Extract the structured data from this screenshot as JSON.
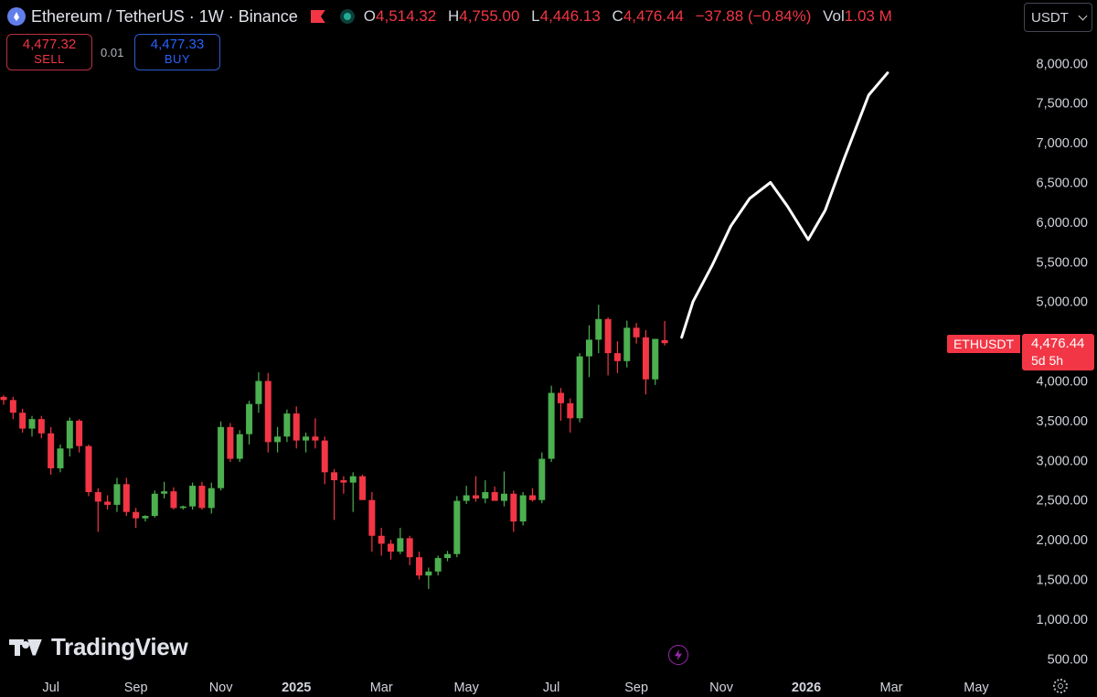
{
  "header": {
    "symbol_title": "Ethereum / TetherUS · 1W · Binance",
    "open_key": "O",
    "open": "4,514.32",
    "high_key": "H",
    "high": "4,755.00",
    "low_key": "L",
    "low": "4,446.13",
    "close_key": "C",
    "close": "4,476.44",
    "change": "−37.88 (−0.84%)",
    "vol_key": "Vol",
    "volume": "1.03 M"
  },
  "trade": {
    "sell_price": "4,477.32",
    "sell_label": "SELL",
    "spread": "0.01",
    "buy_price": "4,477.33",
    "buy_label": "BUY"
  },
  "currency_select": "USDT",
  "last_price": {
    "symbol": "ETHUSDT",
    "price": "4,476.44",
    "countdown": "5d 5h"
  },
  "branding": {
    "logo_text": "TradingView"
  },
  "colors": {
    "up": "#4caf50",
    "down": "#f23645",
    "projection": "#ffffff",
    "background": "#000000"
  },
  "chart_data": {
    "type": "candlestick",
    "interval": "1W",
    "y_ticks": [
      "8,000.00",
      "7,500.00",
      "7,000.00",
      "6,500.00",
      "6,000.00",
      "5,500.00",
      "5,000.00",
      "4,000.00",
      "3,500.00",
      "3,000.00",
      "2,500.00",
      "2,000.00",
      "1,500.00",
      "1,000.00",
      "500.00"
    ],
    "y_tick_values": [
      8000,
      7500,
      7000,
      6500,
      6000,
      5500,
      5000,
      4000,
      3500,
      3000,
      2500,
      2000,
      1500,
      1000,
      500
    ],
    "x_ticks": [
      {
        "label": "Jul",
        "bold": false,
        "index": 5
      },
      {
        "label": "Sep",
        "bold": false,
        "index": 14
      },
      {
        "label": "Nov",
        "bold": false,
        "index": 23
      },
      {
        "label": "2025",
        "bold": true,
        "index": 31
      },
      {
        "label": "Mar",
        "bold": false,
        "index": 40
      },
      {
        "label": "May",
        "bold": false,
        "index": 49
      },
      {
        "label": "Jul",
        "bold": false,
        "index": 58
      },
      {
        "label": "Sep",
        "bold": false,
        "index": 67
      },
      {
        "label": "Nov",
        "bold": false,
        "index": 76
      },
      {
        "label": "2026",
        "bold": true,
        "index": 85
      },
      {
        "label": "Mar",
        "bold": false,
        "index": 94
      },
      {
        "label": "May",
        "bold": false,
        "index": 103
      }
    ],
    "ylim": [
      300,
      8500
    ],
    "candles": [
      [
        3800,
        3820,
        3700,
        3760
      ],
      [
        3760,
        3800,
        3520,
        3600
      ],
      [
        3600,
        3650,
        3350,
        3400
      ],
      [
        3400,
        3560,
        3300,
        3520
      ],
      [
        3520,
        3560,
        3280,
        3340
      ],
      [
        3340,
        3420,
        2820,
        2900
      ],
      [
        2900,
        3200,
        2850,
        3150
      ],
      [
        3150,
        3540,
        3050,
        3500
      ],
      [
        3500,
        3520,
        3100,
        3180
      ],
      [
        3180,
        3200,
        2550,
        2600
      ],
      [
        2600,
        2650,
        2100,
        2480
      ],
      [
        2480,
        2560,
        2380,
        2440
      ],
      [
        2440,
        2780,
        2350,
        2700
      ],
      [
        2700,
        2780,
        2300,
        2350
      ],
      [
        2350,
        2400,
        2150,
        2270
      ],
      [
        2270,
        2310,
        2230,
        2300
      ],
      [
        2300,
        2620,
        2280,
        2580
      ],
      [
        2580,
        2730,
        2520,
        2610
      ],
      [
        2610,
        2660,
        2380,
        2400
      ],
      [
        2400,
        2430,
        2380,
        2420
      ],
      [
        2420,
        2720,
        2380,
        2680
      ],
      [
        2680,
        2730,
        2380,
        2400
      ],
      [
        2400,
        2720,
        2330,
        2650
      ],
      [
        2650,
        3490,
        2620,
        3420
      ],
      [
        3420,
        3470,
        2980,
        3020
      ],
      [
        3020,
        3380,
        2980,
        3330
      ],
      [
        3330,
        3750,
        3200,
        3710
      ],
      [
        3710,
        4110,
        3600,
        4000
      ],
      [
        4000,
        4100,
        3100,
        3230
      ],
      [
        3230,
        3420,
        3100,
        3300
      ],
      [
        3300,
        3640,
        3230,
        3590
      ],
      [
        3590,
        3680,
        3150,
        3250
      ],
      [
        3250,
        3350,
        3100,
        3300
      ],
      [
        3300,
        3530,
        3150,
        3250
      ],
      [
        3250,
        3300,
        2700,
        2850
      ],
      [
        2850,
        2890,
        2250,
        2750
      ],
      [
        2750,
        2800,
        2580,
        2720
      ],
      [
        2720,
        2850,
        2350,
        2800
      ],
      [
        2800,
        2820,
        2520,
        2500
      ],
      [
        2500,
        2600,
        1850,
        2050
      ],
      [
        2050,
        2150,
        1800,
        1950
      ],
      [
        1950,
        2000,
        1750,
        1850
      ],
      [
        1850,
        2150,
        1820,
        2020
      ],
      [
        2020,
        2050,
        1680,
        1780
      ],
      [
        1780,
        1850,
        1500,
        1550
      ],
      [
        1550,
        1650,
        1380,
        1600
      ],
      [
        1600,
        1800,
        1550,
        1770
      ],
      [
        1770,
        1860,
        1730,
        1820
      ],
      [
        1820,
        2550,
        1780,
        2490
      ],
      [
        2490,
        2680,
        2450,
        2560
      ],
      [
        2560,
        2800,
        2480,
        2520
      ],
      [
        2520,
        2750,
        2460,
        2600
      ],
      [
        2600,
        2670,
        2500,
        2490
      ],
      [
        2490,
        2860,
        2420,
        2580
      ],
      [
        2580,
        2620,
        2100,
        2230
      ],
      [
        2230,
        2600,
        2180,
        2560
      ],
      [
        2560,
        2650,
        2480,
        2500
      ],
      [
        2500,
        3100,
        2460,
        3020
      ],
      [
        3020,
        3940,
        2980,
        3850
      ],
      [
        3850,
        3910,
        3500,
        3720
      ],
      [
        3720,
        3780,
        3350,
        3530
      ],
      [
        3530,
        4350,
        3480,
        4310
      ],
      [
        4310,
        4700,
        4050,
        4520
      ],
      [
        4520,
        4960,
        4350,
        4780
      ],
      [
        4780,
        4800,
        4070,
        4350
      ],
      [
        4350,
        4500,
        4100,
        4250
      ],
      [
        4250,
        4760,
        4170,
        4670
      ],
      [
        4670,
        4730,
        4470,
        4550
      ],
      [
        4550,
        4640,
        3830,
        4020
      ],
      [
        4020,
        4500,
        3950,
        4530
      ],
      [
        4514,
        4755,
        4446,
        4476
      ]
    ],
    "projection": [
      [
        71.8,
        4550
      ],
      [
        73,
        5000
      ],
      [
        75,
        5450
      ],
      [
        77,
        5950
      ],
      [
        79,
        6300
      ],
      [
        81.2,
        6500
      ],
      [
        83,
        6200
      ],
      [
        85.2,
        5780
      ],
      [
        87,
        6150
      ],
      [
        89,
        6800
      ],
      [
        91.6,
        7600
      ],
      [
        93.6,
        7880
      ]
    ]
  }
}
